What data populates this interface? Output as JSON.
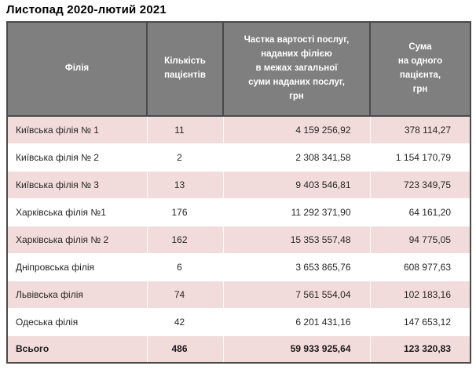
{
  "title": "Листопад 2020-лютий 2021",
  "colors": {
    "header_bg": "#7f7f7f",
    "header_text": "#ffffff",
    "row_alt_bg": "#f2dcdb",
    "row_bg": "#ffffff",
    "border": "#4a4a4a",
    "body_text": "#262626"
  },
  "table": {
    "headers": {
      "branch": "Філія",
      "patients": "Кількість\nпацієнтів",
      "share": "Частка вартості послуг,\nнаданих філією\nв межах загальної\nсуми наданих послуг,\nгрн",
      "per_patient": "Сума\nна одного\nпацієнта,\nгрн"
    },
    "rows": [
      {
        "branch": "Київська філія № 1",
        "patients": "11",
        "share": "4 159 256,92",
        "per_patient": "378 114,27",
        "is_total": false
      },
      {
        "branch": "Київська філія № 2",
        "patients": "2",
        "share": "2 308 341,58",
        "per_patient": "1 154 170,79",
        "is_total": false
      },
      {
        "branch": "Київська філія № 3",
        "patients": "13",
        "share": "9 403 546,81",
        "per_patient": "723 349,75",
        "is_total": false
      },
      {
        "branch": "Харківська філія №1",
        "patients": "176",
        "share": "11 292 371,90",
        "per_patient": "64 161,20",
        "is_total": false
      },
      {
        "branch": "Харківська філія № 2",
        "patients": "162",
        "share": "15 353 557,48",
        "per_patient": "94 775,05",
        "is_total": false
      },
      {
        "branch": "Дніпровська філія",
        "patients": "6",
        "share": "3 653 865,76",
        "per_patient": "608 977,63",
        "is_total": false
      },
      {
        "branch": "Львівська філія",
        "patients": "74",
        "share": "7 561 554,04",
        "per_patient": "102 183,16",
        "is_total": false
      },
      {
        "branch": "Одеська філія",
        "patients": "42",
        "share": "6 201 431,16",
        "per_patient": "147 653,12",
        "is_total": false
      },
      {
        "branch": "Всього",
        "patients": "486",
        "share": "59 933 925,64",
        "per_patient": "123 320,83",
        "is_total": true
      }
    ]
  }
}
